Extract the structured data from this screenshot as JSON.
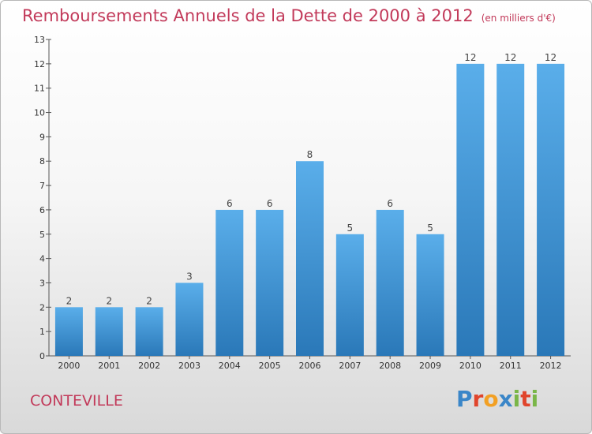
{
  "chart_data": {
    "type": "bar",
    "title": "Remboursements Annuels de la Dette de 2000 à 2012",
    "unit_note": "(en milliers d'€)",
    "categories": [
      "2000",
      "2001",
      "2002",
      "2003",
      "2004",
      "2005",
      "2006",
      "2007",
      "2008",
      "2009",
      "2010",
      "2011",
      "2012"
    ],
    "values": [
      2,
      2,
      2,
      3,
      6,
      6,
      8,
      5,
      6,
      5,
      12,
      12,
      12
    ],
    "ylim": [
      0,
      13
    ],
    "yticks": [
      0,
      1,
      2,
      3,
      4,
      5,
      6,
      7,
      8,
      9,
      10,
      11,
      12,
      13
    ],
    "grid": false,
    "bar_color": "#3d8fd0"
  },
  "commune": "CONTEVILLE",
  "brand": {
    "letters": [
      "P",
      "r",
      "o",
      "x",
      "i",
      "t",
      "i"
    ],
    "colors": [
      "#3a86c8",
      "#e0452c",
      "#f2a024",
      "#3a86c8",
      "#7ab648",
      "#e0452c",
      "#7ab648"
    ]
  }
}
